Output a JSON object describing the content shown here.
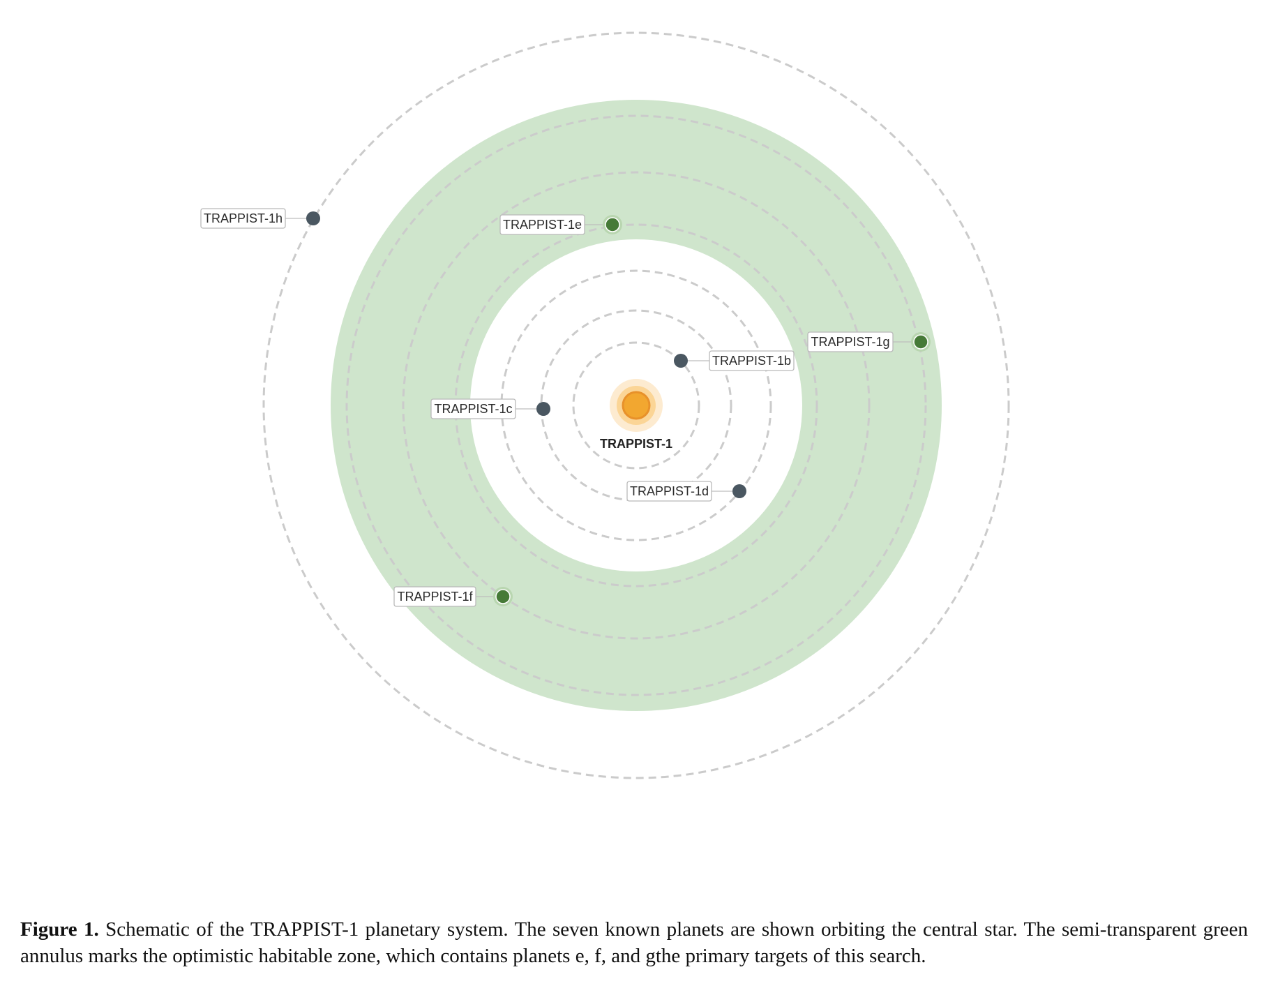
{
  "star": {
    "name": "TRAPPIST-1",
    "color": "#f2a730"
  },
  "habitable_zone": {
    "color": "#cfe5cc"
  },
  "planets": [
    {
      "name": "TRAPPIST-1b",
      "habitable": false
    },
    {
      "name": "TRAPPIST-1c",
      "habitable": false
    },
    {
      "name": "TRAPPIST-1d",
      "habitable": false
    },
    {
      "name": "TRAPPIST-1e",
      "habitable": true
    },
    {
      "name": "TRAPPIST-1f",
      "habitable": true
    },
    {
      "name": "TRAPPIST-1g",
      "habitable": true
    },
    {
      "name": "TRAPPIST-1h",
      "habitable": false
    }
  ],
  "colors": {
    "planet_rocky": "#4a5761",
    "planet_habitable": "#467a37",
    "orbit": "#cbcbcb"
  },
  "caption": {
    "label": "Figure 1.",
    "text": "Schematic of the TRAPPIST-1 planetary system. The seven known planets are shown orbiting the central star. The semi-transparent green annulus marks the optimistic habitable zone, which contains planets e, f, and gthe primary targets of this search."
  }
}
